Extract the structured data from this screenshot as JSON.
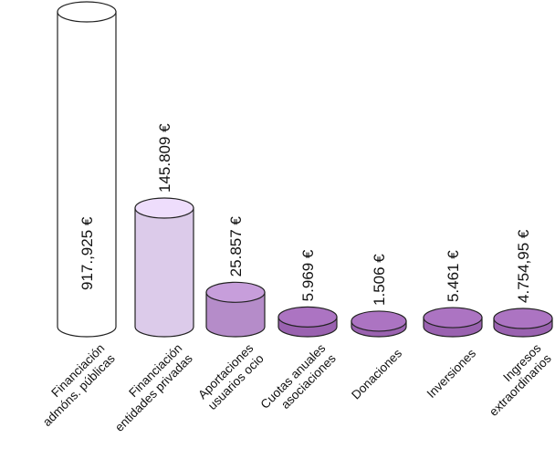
{
  "chart_data": {
    "type": "bar",
    "categories": [
      [
        "Financiación",
        "admóns. públicas"
      ],
      [
        "Financiación",
        "entidades privadas"
      ],
      [
        "Aportaciones",
        "usuarios ocio"
      ],
      [
        "Cuotas anuales",
        "asociaciones"
      ],
      [
        "Donaciones"
      ],
      [
        "Inversiones"
      ],
      [
        "Ingresos",
        "extraordinarios"
      ]
    ],
    "values": [
      917925,
      145809,
      25857,
      5969,
      1506,
      5461,
      4754.95
    ],
    "value_labels": [
      "917.,925 €",
      "145.809 €",
      "25.857 €",
      "5.969 €",
      "1.506 €",
      "5.461 €",
      "4.754,95 €"
    ],
    "title": "",
    "xlabel": "",
    "ylabel": "",
    "colors": {
      "white": "#ffffff",
      "light_lilac": "#dccbea",
      "medium_lilac": "#b58cc9",
      "purple": "#9a62b0",
      "outline": "#222222"
    }
  }
}
